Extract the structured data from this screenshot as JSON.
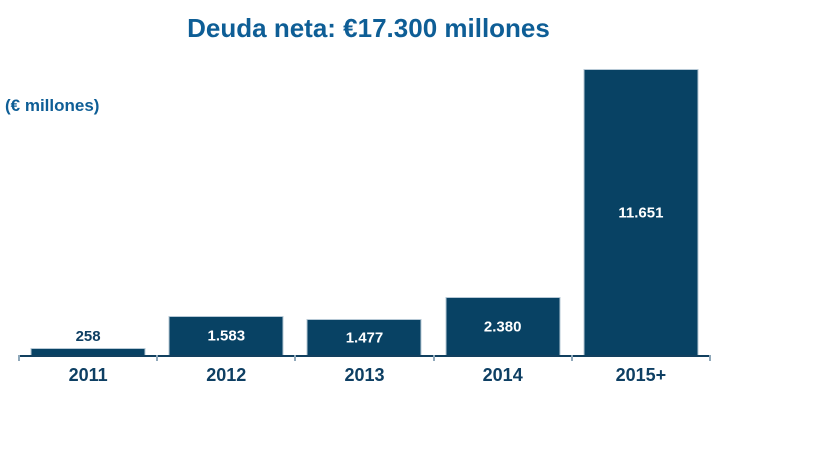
{
  "title": "Deuda neta: €17.300 millones",
  "units_label": "(€ millones)",
  "colors": {
    "title_text": "#0e5e96",
    "axis_text": "#0e3f63",
    "axis_line": "#12405f",
    "tick": "#8fa8ba",
    "bar_fill": "#084264",
    "bar_border": "#b7c9d6",
    "value_label_inside": "#ffffff"
  },
  "chart_data": {
    "type": "bar",
    "title": "Deuda neta: €17.300 millones",
    "ylabel": "(€ millones)",
    "xlabel": "",
    "categories": [
      "2011",
      "2012",
      "2013",
      "2014",
      "2015+"
    ],
    "values": [
      258,
      1583,
      1477,
      2380,
      11651
    ],
    "value_labels": [
      "258",
      "1.583",
      "1.477",
      "2.380",
      "11.651"
    ],
    "value_label_position": [
      "above",
      "inside",
      "inside",
      "inside",
      "inside"
    ],
    "ylim": [
      0,
      11651
    ],
    "grid": false,
    "legend": false,
    "y_axis_shown": false
  }
}
